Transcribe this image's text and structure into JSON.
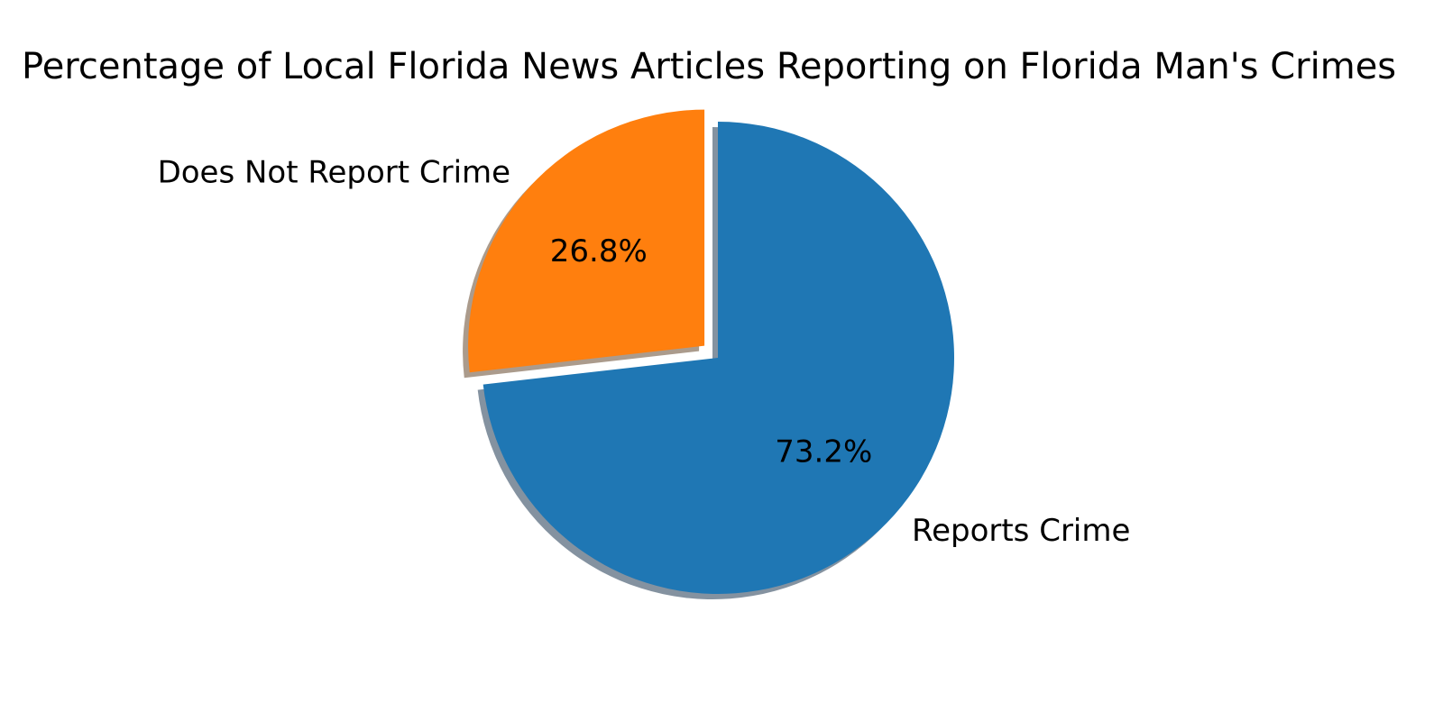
{
  "chart_data": {
    "type": "pie",
    "title": "Percentage of Local Florida News Articles Reporting on Florida Man's Crimes",
    "slices": [
      {
        "label": "Reports Crime",
        "value": 73.2,
        "pct_label": "73.2%",
        "color": "#1f77b4",
        "exploded": false
      },
      {
        "label": "Does Not Report Crime",
        "value": 26.8,
        "pct_label": "26.8%",
        "color": "#ff7f0e",
        "exploded": true
      }
    ],
    "start_angle_deg": 90,
    "direction": "clockwise",
    "shadow": true,
    "legend": "none"
  }
}
